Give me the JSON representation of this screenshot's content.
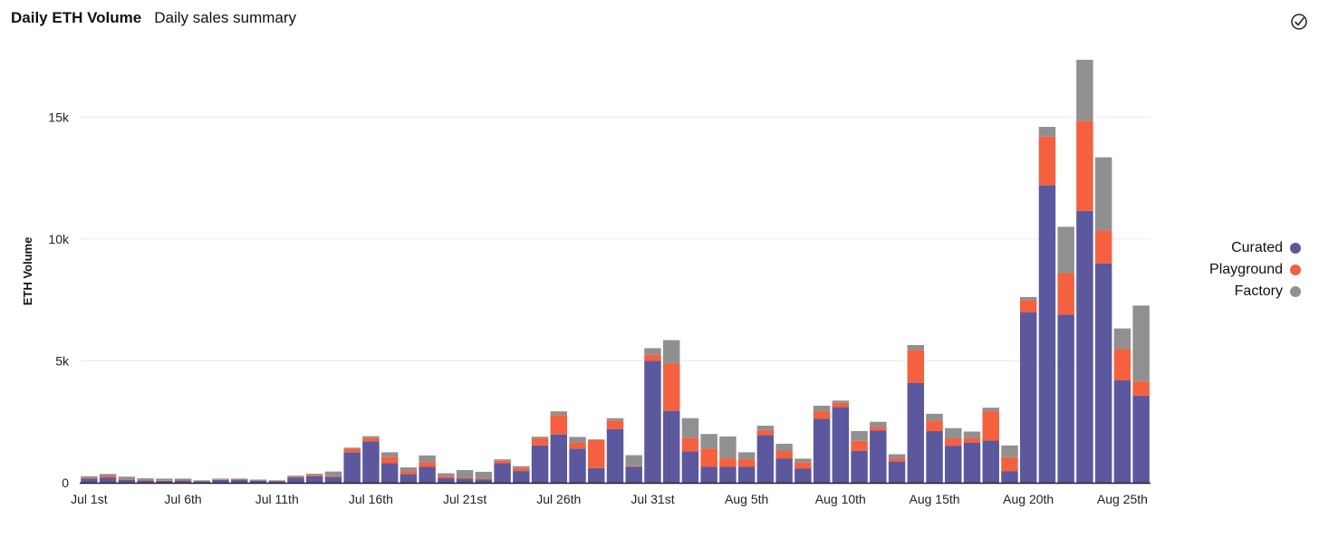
{
  "header": {
    "title": "Daily ETH Volume",
    "subtitle": "Daily sales summary",
    "action_icon": "check-circle-icon"
  },
  "colors": {
    "Curated": "#5b589d",
    "Playground": "#f5603f",
    "Factory": "#909090"
  },
  "chart_data": {
    "type": "bar",
    "stacked": true,
    "title": "Daily ETH Volume",
    "ylabel": "ETH Volume",
    "xlabel": "",
    "ylim": [
      0,
      17500
    ],
    "yticks": [
      0,
      5000,
      10000,
      15000
    ],
    "ytick_labels": [
      "0",
      "5k",
      "10k",
      "15k"
    ],
    "xtick_labels": [
      "Jul 1st",
      "Jul 6th",
      "Jul 11th",
      "Jul 16th",
      "Jul 21st",
      "Jul 26th",
      "Jul 31st",
      "Aug 5th",
      "Aug 10th",
      "Aug 15th",
      "Aug 20th",
      "Aug 25th"
    ],
    "xtick_every": 5,
    "grid": true,
    "legend_position": "right",
    "categories": [
      "Jul 1",
      "Jul 2",
      "Jul 3",
      "Jul 4",
      "Jul 5",
      "Jul 6",
      "Jul 7",
      "Jul 8",
      "Jul 9",
      "Jul 10",
      "Jul 11",
      "Jul 12",
      "Jul 13",
      "Jul 14",
      "Jul 15",
      "Jul 16",
      "Jul 17",
      "Jul 18",
      "Jul 19",
      "Jul 20",
      "Jul 21",
      "Jul 22",
      "Jul 23",
      "Jul 24",
      "Jul 25",
      "Jul 26",
      "Jul 27",
      "Jul 28",
      "Jul 29",
      "Jul 30",
      "Jul 31",
      "Aug 1",
      "Aug 2",
      "Aug 3",
      "Aug 4",
      "Aug 5",
      "Aug 6",
      "Aug 7",
      "Aug 8",
      "Aug 9",
      "Aug 10",
      "Aug 11",
      "Aug 12",
      "Aug 13",
      "Aug 14",
      "Aug 15",
      "Aug 16",
      "Aug 17",
      "Aug 18",
      "Aug 19",
      "Aug 20",
      "Aug 21",
      "Aug 22",
      "Aug 23",
      "Aug 24",
      "Aug 25",
      "Aug 26"
    ],
    "series": [
      {
        "name": "Curated",
        "values": [
          170,
          220,
          120,
          90,
          80,
          90,
          60,
          120,
          110,
          90,
          60,
          220,
          260,
          250,
          1250,
          1700,
          800,
          350,
          650,
          200,
          180,
          130,
          800,
          480,
          1530,
          1980,
          1400,
          600,
          2200,
          650,
          5000,
          2950,
          1280,
          650,
          650,
          650,
          1960,
          1000,
          590,
          2620,
          3100,
          1300,
          2150,
          880,
          4100,
          2120,
          1520,
          1650,
          1730,
          480,
          7000,
          12200,
          6900,
          11150,
          9000,
          4200,
          3570
        ]
      },
      {
        "name": "Playground",
        "values": [
          40,
          60,
          30,
          20,
          20,
          20,
          10,
          20,
          20,
          10,
          15,
          30,
          50,
          40,
          150,
          150,
          270,
          130,
          200,
          90,
          40,
          40,
          120,
          140,
          300,
          800,
          250,
          1150,
          350,
          30,
          250,
          1950,
          570,
          750,
          350,
          300,
          200,
          300,
          250,
          320,
          180,
          420,
          150,
          140,
          1350,
          430,
          300,
          200,
          1200,
          570,
          500,
          2000,
          1700,
          3700,
          1350,
          1280,
          600
        ]
      },
      {
        "name": "Factory",
        "values": [
          60,
          80,
          100,
          70,
          70,
          60,
          30,
          30,
          40,
          30,
          25,
          40,
          60,
          170,
          40,
          60,
          180,
          150,
          270,
          100,
          300,
          280,
          40,
          60,
          60,
          150,
          230,
          30,
          100,
          450,
          270,
          950,
          800,
          600,
          900,
          300,
          180,
          300,
          150,
          220,
          90,
          400,
          200,
          150,
          200,
          280,
          420,
          250,
          150,
          480,
          120,
          400,
          1900,
          2500,
          3000,
          850,
          3100
        ]
      }
    ]
  }
}
